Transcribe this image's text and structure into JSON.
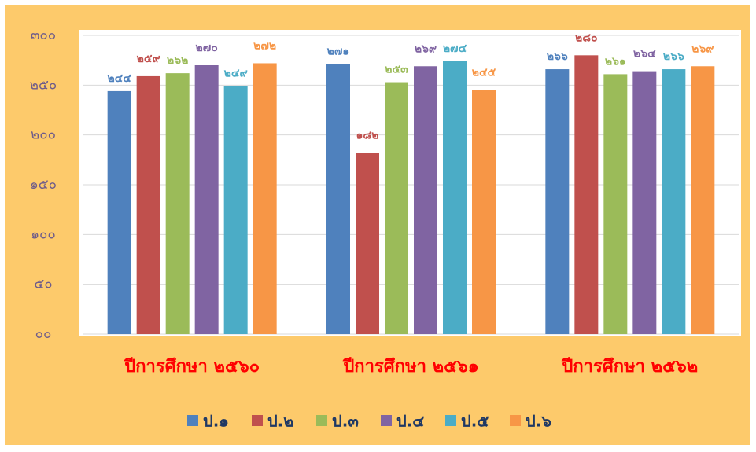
{
  "chart_data": {
    "type": "bar",
    "categories": [
      "ปีการศึกษา ๒๕๖๐",
      "ปีการศึกษา ๒๕๖๑",
      "ปีการศึกษา ๒๕๖๒"
    ],
    "series": [
      {
        "name": "ป.๑",
        "color": "#4f81bd",
        "values": [
          244,
          271,
          266
        ],
        "value_labels": [
          "๒๔๔",
          "๒๗๑",
          "๒๖๖"
        ]
      },
      {
        "name": "ป.๒",
        "color": "#c0504d",
        "values": [
          259,
          182,
          280
        ],
        "value_labels": [
          "๒๕๙",
          "๑๘๒",
          "๒๘๐"
        ]
      },
      {
        "name": "ป.๓",
        "color": "#9bbb59",
        "values": [
          262,
          253,
          261
        ],
        "value_labels": [
          "๒๖๒",
          "๒๕๓",
          "๒๖๑"
        ]
      },
      {
        "name": "ป.๔",
        "color": "#8064a2",
        "values": [
          270,
          269,
          264
        ],
        "value_labels": [
          "๒๗๐",
          "๒๖๙",
          "๒๖๔"
        ]
      },
      {
        "name": "ป.๕",
        "color": "#4bacc6",
        "values": [
          249,
          274,
          266
        ],
        "value_labels": [
          "๒๔๙",
          "๒๗๔",
          "๒๖๖"
        ]
      },
      {
        "name": "ป.๖",
        "color": "#f79646",
        "values": [
          272,
          245,
          269
        ],
        "value_labels": [
          "๒๗๒",
          "๒๔๕",
          "๒๖๙"
        ]
      }
    ],
    "ylim": [
      0,
      300
    ],
    "yticks": [
      {
        "value": 0,
        "label": "๐๐"
      },
      {
        "value": 50,
        "label": "๕๐"
      },
      {
        "value": 100,
        "label": "๑๐๐"
      },
      {
        "value": 150,
        "label": "๑๕๐"
      },
      {
        "value": 200,
        "label": "๒๐๐"
      },
      {
        "value": 250,
        "label": "๒๕๐"
      },
      {
        "value": 300,
        "label": "๓๐๐"
      }
    ],
    "grid": true
  }
}
